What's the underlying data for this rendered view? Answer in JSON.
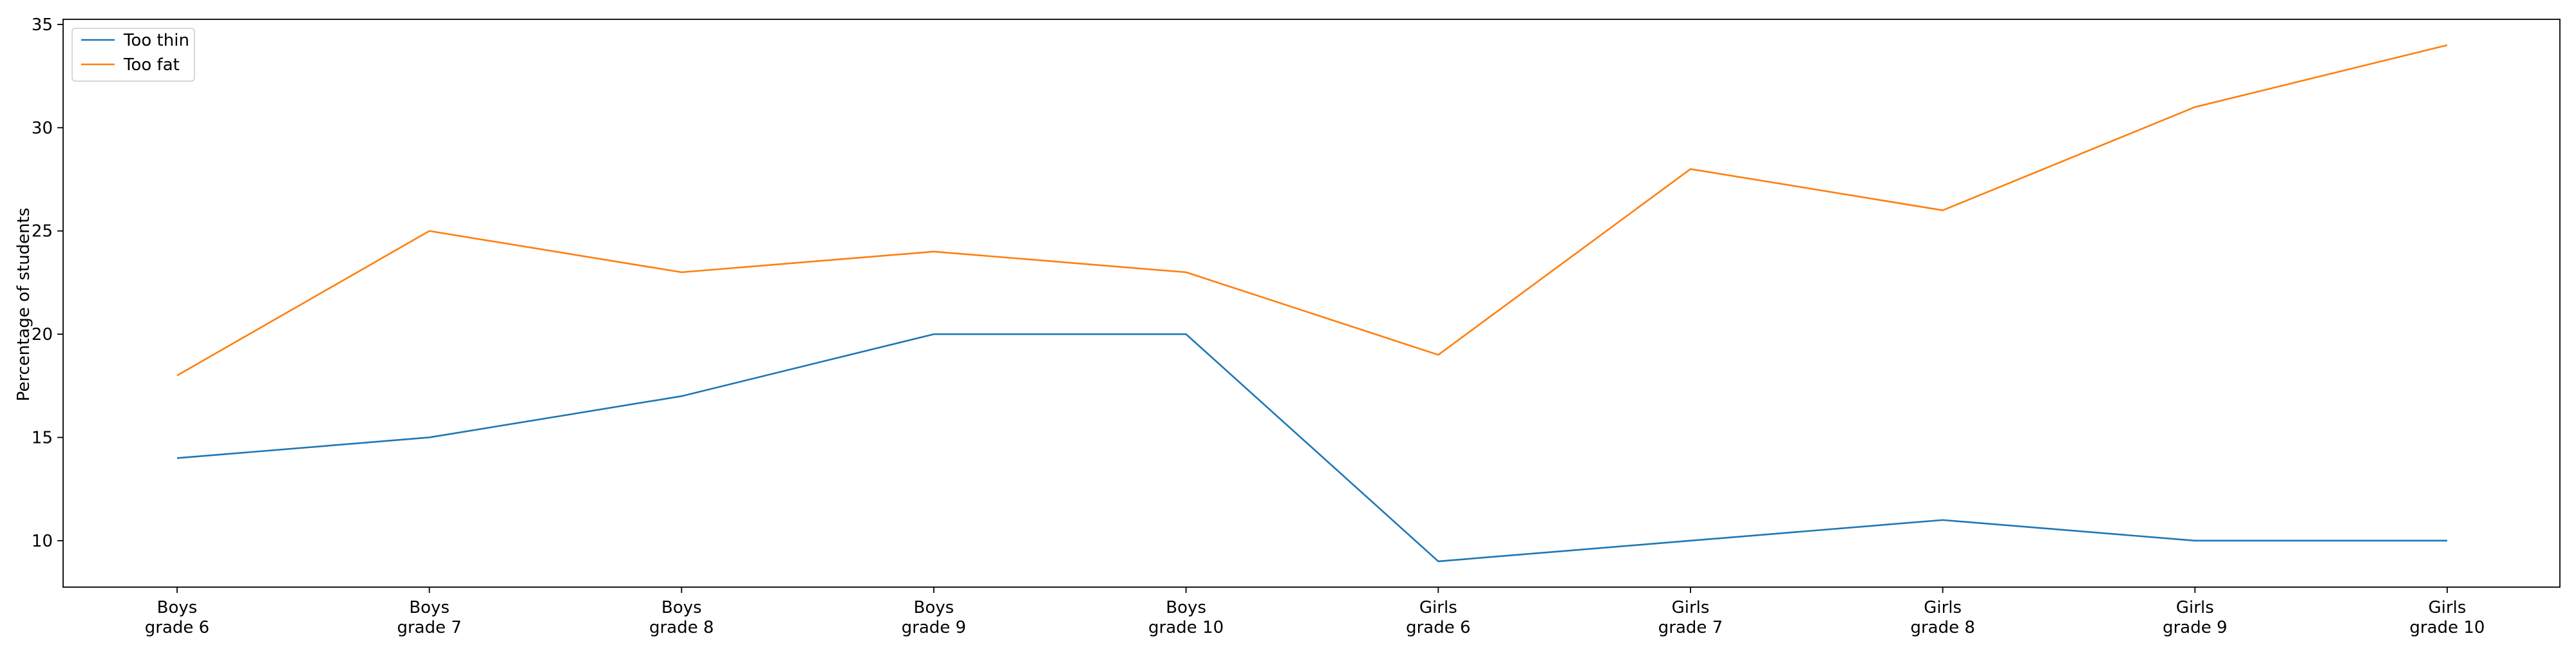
{
  "chart_data": {
    "type": "line",
    "title": "",
    "xlabel": "",
    "ylabel": "Percentage of students",
    "categories": [
      [
        "Boys",
        "grade 6"
      ],
      [
        "Boys",
        "grade 7"
      ],
      [
        "Boys",
        "grade 8"
      ],
      [
        "Boys",
        "grade 9"
      ],
      [
        "Boys",
        "grade 10"
      ],
      [
        "Girls",
        "grade 6"
      ],
      [
        "Girls",
        "grade 7"
      ],
      [
        "Girls",
        "grade 8"
      ],
      [
        "Girls",
        "grade 9"
      ],
      [
        "Girls",
        "grade 10"
      ]
    ],
    "series": [
      {
        "name": "Too thin",
        "color": "#1f77b4",
        "values": [
          14,
          15,
          17,
          20,
          20,
          9,
          10,
          11,
          10,
          10
        ]
      },
      {
        "name": "Too fat",
        "color": "#ff7f0e",
        "values": [
          18,
          25,
          23,
          24,
          23,
          19,
          28,
          26,
          31,
          34
        ]
      }
    ],
    "ylim": [
      7.75,
      35.25
    ],
    "yticks": [
      10,
      15,
      20,
      25,
      30,
      35
    ],
    "grid": false,
    "legend_position": "top-left"
  }
}
